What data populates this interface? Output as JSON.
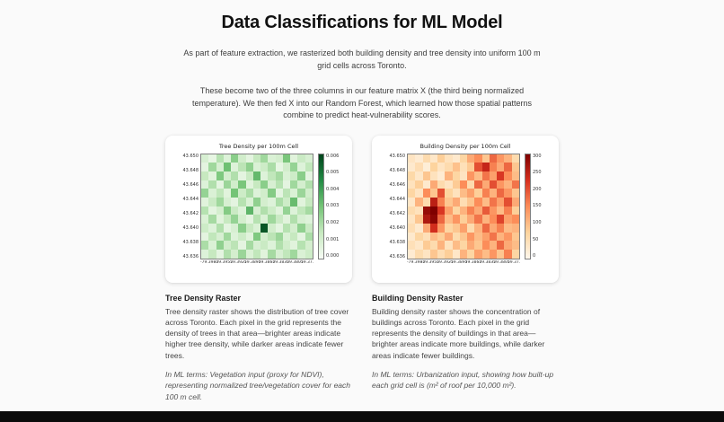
{
  "page": {
    "title": "Data Classifications for ML Model",
    "intro_1": "As part of feature extraction, we rasterized both building density and tree density into uniform 100 m grid cells across Toronto.",
    "intro_2": "These become two of the three columns in our feature matrix X (the third being normalized temperature). We then fed X into our Random Forest, which learned how those spatial patterns combine to predict heat-vulnerability scores."
  },
  "colors": {
    "page_bg": "#fafafa",
    "card_bg": "#ffffff",
    "bottom_bar": "#0b0b0b",
    "tree_dark": "#00441b",
    "building_dark": "#7f0000"
  },
  "sections": [
    {
      "heading": "Tree Density Raster",
      "body": "Tree density raster shows the distribution of tree cover across Toronto. Each pixel in the grid represents the density of trees in that area—brighter areas indicate higher tree density, while darker areas indicate fewer trees.",
      "ml_note": "In ML terms: Vegetation input (proxy for NDVI), representing normalized tree/vegetation cover for each 100 m cell."
    },
    {
      "heading": "Building Density Raster",
      "body": "Building density raster shows the concentration of buildings across Toronto. Each pixel in the grid represents the density of buildings in that area—brighter areas indicate more buildings, while darker areas indicate fewer buildings.",
      "ml_note": "In ML terms: Urbanization input, showing how built-up each grid cell is (m² of roof per 10,000 m²)."
    }
  ],
  "chart_data": [
    {
      "type": "heatmap",
      "title": "Tree Density per 100m Cell",
      "vmin": 0.0,
      "vmax": 0.006,
      "colormap_stops": [
        [
          0,
          "#f7fcf5"
        ],
        [
          0.25,
          "#c7e9c0"
        ],
        [
          0.5,
          "#74c476"
        ],
        [
          0.75,
          "#238b45"
        ],
        [
          1,
          "#00441b"
        ]
      ],
      "colorbar_ticks": [
        "0.006",
        "0.005",
        "0.004",
        "0.003",
        "0.002",
        "0.001",
        "0.000"
      ],
      "y_ticks": [
        "43.650",
        "43.648",
        "43.646",
        "43.644",
        "43.642",
        "43.640",
        "43.638",
        "43.636"
      ],
      "x_ticks": [
        "-79.3985",
        "-79.3955",
        "-79.3925",
        "-79.3895",
        "-79.3865",
        "-79.3835",
        "-79.3805",
        "-79.3775"
      ],
      "values": [
        [
          0.001,
          0.0005,
          0.0018,
          0.0008,
          0.0026,
          0.0012,
          0.0006,
          0.0015,
          0.0022,
          0.0009,
          0.0011,
          0.0029,
          0.0007,
          0.0014,
          0.001
        ],
        [
          0.0006,
          0.0022,
          0.001,
          0.0031,
          0.0008,
          0.0017,
          0.0025,
          0.0009,
          0.0013,
          0.002,
          0.0005,
          0.0012,
          0.0024,
          0.0008,
          0.0016
        ],
        [
          0.0015,
          0.0007,
          0.0028,
          0.0011,
          0.0019,
          0.0006,
          0.0014,
          0.0033,
          0.0008,
          0.0016,
          0.0021,
          0.0009,
          0.0013,
          0.0026,
          0.0006
        ],
        [
          0.0008,
          0.0019,
          0.0006,
          0.0023,
          0.0012,
          0.0029,
          0.0007,
          0.0015,
          0.0026,
          0.001,
          0.0018,
          0.0006,
          0.0022,
          0.0011,
          0.0019
        ],
        [
          0.0024,
          0.0009,
          0.0016,
          0.0007,
          0.003,
          0.0013,
          0.002,
          0.0008,
          0.0012,
          0.0027,
          0.0006,
          0.0017,
          0.0009,
          0.0023,
          0.0012
        ],
        [
          0.0007,
          0.0014,
          0.0022,
          0.001,
          0.0006,
          0.0018,
          0.0009,
          0.0025,
          0.0011,
          0.0008,
          0.002,
          0.0013,
          0.0032,
          0.0007,
          0.0015
        ],
        [
          0.0018,
          0.0006,
          0.0011,
          0.0027,
          0.0014,
          0.0008,
          0.0034,
          0.001,
          0.0019,
          0.0013,
          0.0007,
          0.0024,
          0.0008,
          0.0016,
          0.0021
        ],
        [
          0.0009,
          0.0021,
          0.0007,
          0.0015,
          0.0024,
          0.0011,
          0.0006,
          0.0018,
          0.0009,
          0.0022,
          0.0014,
          0.0007,
          0.0019,
          0.001,
          0.0008
        ],
        [
          0.0013,
          0.0008,
          0.0019,
          0.0006,
          0.001,
          0.0026,
          0.0015,
          0.0009,
          0.0056,
          0.0012,
          0.0006,
          0.0018,
          0.0011,
          0.0025,
          0.0014
        ],
        [
          0.0006,
          0.0016,
          0.001,
          0.0022,
          0.0008,
          0.0013,
          0.0007,
          0.0028,
          0.0011,
          0.0017,
          0.0023,
          0.0009,
          0.0015,
          0.0006,
          0.002
        ],
        [
          0.002,
          0.0009,
          0.0025,
          0.0012,
          0.0017,
          0.0006,
          0.0021,
          0.001,
          0.0014,
          0.0008,
          0.0019,
          0.0012,
          0.0007,
          0.0018,
          0.0011
        ],
        [
          0.0008,
          0.0015,
          0.0006,
          0.0019,
          0.0011,
          0.0023,
          0.0009,
          0.0016,
          0.0007,
          0.0021,
          0.001,
          0.0016,
          0.0022,
          0.0009,
          0.0013
        ]
      ]
    },
    {
      "type": "heatmap",
      "title": "Building Density per 100m Cell",
      "vmin": 0,
      "vmax": 300,
      "colormap_stops": [
        [
          0,
          "#fff7ec"
        ],
        [
          0.25,
          "#fdd49e"
        ],
        [
          0.5,
          "#fc8d59"
        ],
        [
          0.75,
          "#d7301f"
        ],
        [
          1,
          "#7f0000"
        ]
      ],
      "colorbar_ticks": [
        "300",
        "250",
        "200",
        "150",
        "100",
        "50",
        "0"
      ],
      "y_ticks": [
        "43.650",
        "43.648",
        "43.646",
        "43.644",
        "43.642",
        "43.640",
        "43.638",
        "43.636"
      ],
      "x_ticks": [
        "-79.3985",
        "-79.3955",
        "-79.3925",
        "-79.3895",
        "-79.3865",
        "-79.3835",
        "-79.3805",
        "-79.3775"
      ],
      "values": [
        [
          40,
          25,
          60,
          35,
          80,
          45,
          30,
          70,
          120,
          150,
          90,
          180,
          140,
          110,
          60
        ],
        [
          30,
          55,
          20,
          75,
          40,
          60,
          95,
          50,
          85,
          200,
          240,
          160,
          120,
          180,
          90
        ],
        [
          65,
          35,
          90,
          45,
          25,
          110,
          70,
          40,
          140,
          100,
          170,
          130,
          220,
          150,
          100
        ],
        [
          45,
          80,
          30,
          120,
          60,
          40,
          85,
          150,
          60,
          180,
          120,
          200,
          140,
          110,
          170
        ],
        [
          70,
          40,
          150,
          90,
          200,
          75,
          45,
          100,
          130,
          80,
          160,
          110,
          180,
          140,
          90
        ],
        [
          35,
          110,
          60,
          250,
          160,
          90,
          120,
          55,
          90,
          150,
          100,
          170,
          130,
          200,
          120
        ],
        [
          60,
          45,
          280,
          300,
          220,
          130,
          70,
          110,
          160,
          120,
          190,
          140,
          100,
          160,
          80
        ],
        [
          40,
          90,
          260,
          290,
          180,
          100,
          140,
          80,
          120,
          170,
          110,
          150,
          210,
          130,
          150
        ],
        [
          55,
          30,
          120,
          230,
          140,
          70,
          90,
          130,
          60,
          110,
          180,
          120,
          160,
          100,
          110
        ],
        [
          30,
          70,
          50,
          100,
          80,
          120,
          60,
          90,
          140,
          100,
          130,
          170,
          110,
          140,
          90
        ],
        [
          50,
          35,
          85,
          60,
          110,
          45,
          100,
          70,
          120,
          90,
          150,
          110,
          180,
          120,
          100
        ],
        [
          25,
          60,
          40,
          90,
          55,
          80,
          35,
          110,
          70,
          130,
          100,
          140,
          90,
          160,
          70
        ]
      ]
    }
  ]
}
